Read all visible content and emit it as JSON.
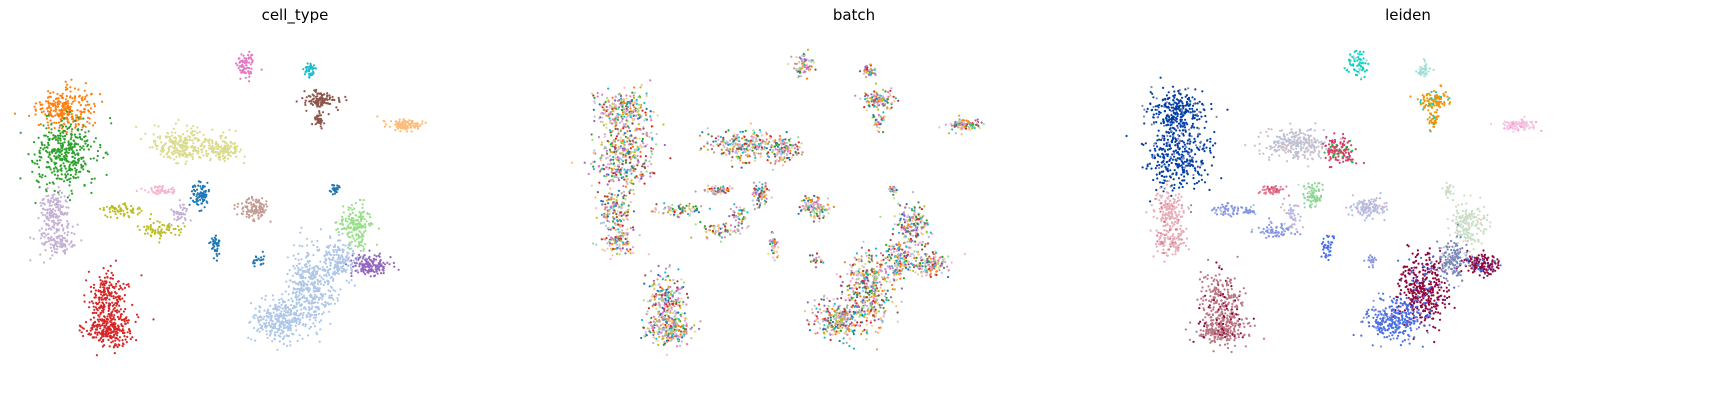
{
  "chart_data": [
    {
      "type": "scatter",
      "title": "cell_type",
      "xlabel": "",
      "ylabel": "",
      "grid": false,
      "legend": "none",
      "colors": [
        "#ff7f0e",
        "#2ca02c",
        "#c5b0d5",
        "#d62728",
        "#dbdb8d",
        "#1f77b4",
        "#e377c2",
        "#17becf",
        "#8c564b",
        "#ffbb78",
        "#c49c94",
        "#98df8a",
        "#aec7e8",
        "#9467bd",
        "#f7b6d2",
        "#bcbd22"
      ]
    },
    {
      "type": "scatter",
      "title": "batch",
      "xlabel": "",
      "ylabel": "",
      "grid": false,
      "legend": "none",
      "colors": [
        "#d62728",
        "#8c564b",
        "#9467bd",
        "#ff7f0e",
        "#1f77b4",
        "#17becf",
        "#2ca02c",
        "#e377c2",
        "#f7b6d2",
        "#aec7e8",
        "#98df8a",
        "#c5b0d5",
        "#ffbb78",
        "#dbdb8d",
        "#bcbd22",
        "#c49c94"
      ]
    },
    {
      "type": "scatter",
      "title": "leiden",
      "xlabel": "",
      "ylabel": "",
      "grid": false,
      "legend": "none",
      "colors": [
        "#023fa5",
        "#7d87b9",
        "#bec1d4",
        "#d6bcc0",
        "#bb7784",
        "#8e063b",
        "#4a6fe3",
        "#8595e1",
        "#b5bbe3",
        "#e6afb9",
        "#e07b91",
        "#d33f6a",
        "#11c638",
        "#8dd593",
        "#c6dec7",
        "#ead3c6",
        "#f0b98d",
        "#ef9708",
        "#0fcfc0",
        "#9cded6",
        "#d5eae7",
        "#f3e1eb",
        "#f6c4e1",
        "#f79cd4"
      ]
    }
  ]
}
